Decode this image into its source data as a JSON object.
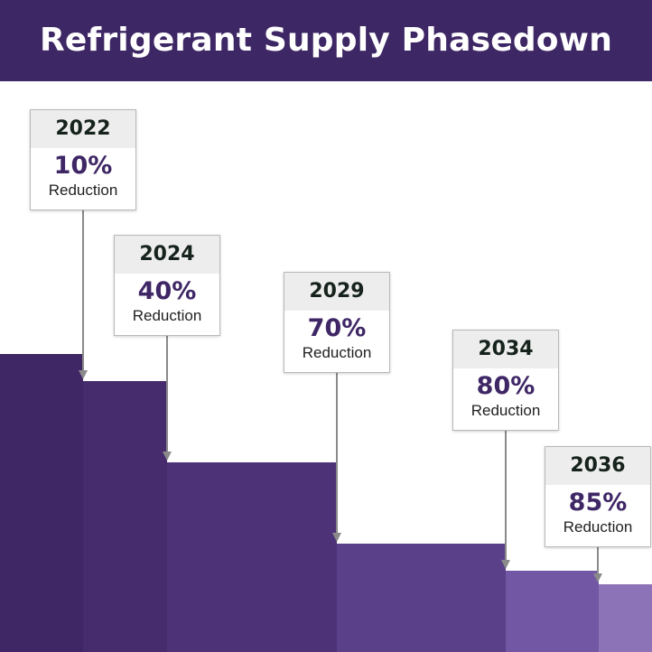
{
  "title": "Refrigerant Supply Phasedown",
  "colors": {
    "title_bg": "#3e2765",
    "steps": [
      "#3f2665",
      "#462b6d",
      "#4d3278",
      "#5a4088",
      "#7257a4",
      "#8c73b8"
    ]
  },
  "chart_data": {
    "type": "bar",
    "categories": [
      "2022",
      "2024",
      "2029",
      "2034",
      "2036"
    ],
    "values": [
      10,
      40,
      70,
      80,
      85
    ],
    "series": [
      {
        "name": "",
        "values": [
          10,
          40,
          70,
          80,
          85
        ]
      }
    ],
    "value_suffix": "%",
    "value_caption": "Reduction",
    "title": "Refrigerant Supply Phasedown",
    "xlabel": "",
    "ylabel": "",
    "grid": false,
    "legend": "none"
  }
}
